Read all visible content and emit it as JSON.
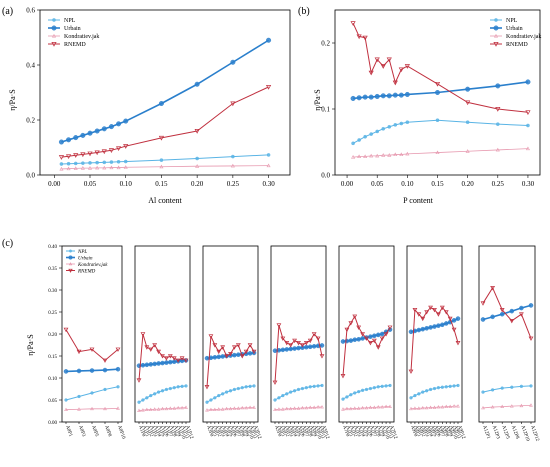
{
  "colors": {
    "NPL": "#5ab4e5",
    "Urbain": "#2a7fcc",
    "Kondratiev_jak": "#e79ab0",
    "RNEMD": "#c0303f"
  },
  "chart_data": [
    {
      "panel": "(a)",
      "type": "line",
      "xlabel": "Al content",
      "ylabel": "η/Pa·S",
      "xlim": [
        -0.02,
        0.33
      ],
      "ylim": [
        0.0,
        0.6
      ],
      "xticks": [
        "0.00",
        "0.05",
        "0.10",
        "0.15",
        "0.20",
        "0.25",
        "0.30"
      ],
      "xtick_values": [
        0,
        0.05,
        0.1,
        0.15,
        0.2,
        0.25,
        0.3
      ],
      "yticks": [
        "0.0",
        "0.2",
        "0.4",
        "0.6"
      ],
      "ytick_values": [
        0,
        0.2,
        0.4,
        0.6
      ],
      "legend_position": "top-left",
      "x": [
        0.01,
        0.02,
        0.03,
        0.04,
        0.05,
        0.06,
        0.07,
        0.08,
        0.09,
        0.1,
        0.15,
        0.2,
        0.25,
        0.3
      ],
      "series": [
        {
          "name": "NPL",
          "key": "NPL",
          "values": [
            0.04,
            0.041,
            0.042,
            0.043,
            0.044,
            0.045,
            0.046,
            0.047,
            0.048,
            0.049,
            0.054,
            0.06,
            0.067,
            0.073
          ]
        },
        {
          "name": "Urbain",
          "key": "Urbain",
          "values": [
            0.12,
            0.128,
            0.136,
            0.144,
            0.152,
            0.16,
            0.168,
            0.176,
            0.186,
            0.196,
            0.26,
            0.33,
            0.41,
            0.49
          ]
        },
        {
          "name": "Kondratiev.jak",
          "key": "Kondratiev_jak",
          "values": [
            0.022,
            0.023,
            0.024,
            0.025,
            0.025,
            0.026,
            0.026,
            0.027,
            0.027,
            0.028,
            0.03,
            0.032,
            0.033,
            0.034
          ]
        },
        {
          "name": "RNEMD",
          "key": "RNEMD",
          "values": [
            0.065,
            0.068,
            0.072,
            0.075,
            0.078,
            0.082,
            0.086,
            0.09,
            0.097,
            0.105,
            0.135,
            0.16,
            0.26,
            0.32
          ]
        }
      ]
    },
    {
      "panel": "(b)",
      "type": "line",
      "xlabel": "P content",
      "ylabel": "η/Pa·S",
      "xlim": [
        -0.02,
        0.32
      ],
      "ylim": [
        0.0,
        0.25
      ],
      "xticks": [
        "0.00",
        "0.05",
        "0.10",
        "0.15",
        "0.20",
        "0.25",
        "0.30"
      ],
      "xtick_values": [
        0,
        0.05,
        0.1,
        0.15,
        0.2,
        0.25,
        0.3
      ],
      "yticks": [
        "0.0",
        "0.1",
        "0.2"
      ],
      "ytick_values": [
        0,
        0.1,
        0.2
      ],
      "legend_position": "top-right",
      "x": [
        0.01,
        0.02,
        0.03,
        0.04,
        0.05,
        0.06,
        0.07,
        0.08,
        0.09,
        0.1,
        0.15,
        0.2,
        0.25,
        0.3
      ],
      "series": [
        {
          "name": "NPL",
          "key": "NPL",
          "values": [
            0.048,
            0.053,
            0.058,
            0.062,
            0.066,
            0.07,
            0.073,
            0.076,
            0.078,
            0.08,
            0.083,
            0.08,
            0.077,
            0.075
          ]
        },
        {
          "name": "Urbain",
          "key": "Urbain",
          "values": [
            0.116,
            0.117,
            0.118,
            0.118,
            0.119,
            0.12,
            0.12,
            0.121,
            0.121,
            0.122,
            0.125,
            0.13,
            0.135,
            0.141
          ]
        },
        {
          "name": "Kondratiev.jak",
          "key": "Kondratiev_jak",
          "values": [
            0.027,
            0.028,
            0.028,
            0.029,
            0.029,
            0.03,
            0.03,
            0.031,
            0.031,
            0.032,
            0.034,
            0.036,
            0.038,
            0.04
          ]
        },
        {
          "name": "RNEMD",
          "key": "RNEMD",
          "values": [
            0.23,
            0.21,
            0.208,
            0.155,
            0.175,
            0.165,
            0.175,
            0.14,
            0.16,
            0.165,
            0.138,
            0.11,
            0.1,
            0.095
          ]
        }
      ]
    },
    {
      "panel": "(c)",
      "type": "line",
      "ylabel": "η/Pa·S",
      "ylim": [
        0.0,
        0.4
      ],
      "yticks": [
        "0.00",
        "0.05",
        "0.10",
        "0.15",
        "0.20",
        "0.25",
        "0.30",
        "0.35",
        "0.40"
      ],
      "ytick_values": [
        0,
        0.05,
        0.1,
        0.15,
        0.2,
        0.25,
        0.3,
        0.35,
        0.4
      ],
      "legend_position": "top-left",
      "legend": [
        "NPL",
        "Urbain",
        "Kondratiev.jak",
        "RNEMD"
      ],
      "subplots": [
        {
          "x_labels": [
            "A0P1",
            "A0P3",
            "A0P5",
            "A0P8",
            "A0P10"
          ],
          "NPL": [
            0.05,
            0.058,
            0.066,
            0.074,
            0.08
          ],
          "Urbain": [
            0.115,
            0.116,
            0.117,
            0.118,
            0.12
          ],
          "Kondratiev_jak": [
            0.028,
            0.029,
            0.03,
            0.03,
            0.031
          ],
          "RNEMD": [
            0.21,
            0.16,
            0.165,
            0.14,
            0.165
          ]
        },
        {
          "x_labels": [
            "A1P0",
            "A1P1",
            "A1P2",
            "A1P3",
            "A1P4",
            "A1P5",
            "A1P6",
            "A1P7",
            "A1P8",
            "A1P9",
            "A1P10",
            "A1P11",
            "A1P12"
          ],
          "NPL": [
            0.045,
            0.05,
            0.055,
            0.06,
            0.064,
            0.068,
            0.071,
            0.074,
            0.076,
            0.078,
            0.08,
            0.081,
            0.082
          ],
          "Urbain": [
            0.128,
            0.129,
            0.13,
            0.131,
            0.132,
            0.133,
            0.134,
            0.135,
            0.136,
            0.137,
            0.138,
            0.139,
            0.14
          ],
          "Kondratiev_jak": [
            0.026,
            0.027,
            0.028,
            0.028,
            0.029,
            0.029,
            0.03,
            0.03,
            0.031,
            0.031,
            0.032,
            0.032,
            0.033
          ],
          "RNEMD": [
            0.095,
            0.2,
            0.17,
            0.165,
            0.175,
            0.16,
            0.15,
            0.145,
            0.15,
            0.145,
            0.14,
            0.145,
            0.14
          ]
        },
        {
          "x_labels": [
            "A3P0",
            "A3P1",
            "A3P2",
            "A3P3",
            "A3P4",
            "A3P5",
            "A3P6",
            "A3P7",
            "A3P8",
            "A3P9",
            "A3P10",
            "A3P11",
            "A3P12"
          ],
          "NPL": [
            0.045,
            0.05,
            0.055,
            0.06,
            0.064,
            0.068,
            0.071,
            0.074,
            0.076,
            0.078,
            0.08,
            0.081,
            0.082
          ],
          "Urbain": [
            0.145,
            0.146,
            0.147,
            0.148,
            0.149,
            0.15,
            0.151,
            0.152,
            0.153,
            0.154,
            0.155,
            0.156,
            0.157
          ],
          "Kondratiev_jak": [
            0.027,
            0.028,
            0.028,
            0.029,
            0.029,
            0.03,
            0.03,
            0.031,
            0.031,
            0.032,
            0.032,
            0.033,
            0.033
          ],
          "RNEMD": [
            0.08,
            0.195,
            0.175,
            0.16,
            0.17,
            0.15,
            0.155,
            0.17,
            0.175,
            0.15,
            0.16,
            0.175,
            0.16
          ]
        },
        {
          "x_labels": [
            "A5P0",
            "A5P1",
            "A5P2",
            "A5P3",
            "A5P4",
            "A5P5",
            "A5P6",
            "A5P7",
            "A5P8",
            "A5P9",
            "A5P10",
            "A5P11",
            "A5P12"
          ],
          "NPL": [
            0.05,
            0.055,
            0.06,
            0.064,
            0.068,
            0.071,
            0.074,
            0.076,
            0.078,
            0.08,
            0.081,
            0.082,
            0.083
          ],
          "Urbain": [
            0.162,
            0.163,
            0.164,
            0.165,
            0.166,
            0.167,
            0.168,
            0.169,
            0.17,
            0.171,
            0.172,
            0.173,
            0.174
          ],
          "Kondratiev_jak": [
            0.028,
            0.029,
            0.029,
            0.03,
            0.03,
            0.031,
            0.031,
            0.032,
            0.032,
            0.033,
            0.033,
            0.034,
            0.034
          ],
          "RNEMD": [
            0.09,
            0.22,
            0.19,
            0.18,
            0.175,
            0.185,
            0.18,
            0.175,
            0.18,
            0.185,
            0.2,
            0.19,
            0.15
          ]
        },
        {
          "x_labels": [
            "A7P0",
            "A7P1",
            "A7P2",
            "A7P3",
            "A7P4",
            "A7P5",
            "A7P6",
            "A7P7",
            "A7P8",
            "A7P9",
            "A7P10",
            "A7P11",
            "A7P12"
          ],
          "NPL": [
            0.052,
            0.057,
            0.062,
            0.066,
            0.069,
            0.072,
            0.074,
            0.076,
            0.078,
            0.08,
            0.081,
            0.082,
            0.083
          ],
          "Urbain": [
            0.183,
            0.184,
            0.185,
            0.187,
            0.188,
            0.19,
            0.192,
            0.194,
            0.196,
            0.198,
            0.2,
            0.205,
            0.21
          ],
          "Kondratiev_jak": [
            0.029,
            0.03,
            0.03,
            0.031,
            0.031,
            0.032,
            0.032,
            0.033,
            0.033,
            0.034,
            0.034,
            0.035,
            0.035
          ],
          "RNEMD": [
            0.105,
            0.21,
            0.225,
            0.24,
            0.215,
            0.2,
            0.19,
            0.18,
            0.185,
            0.17,
            0.19,
            0.2,
            0.215
          ]
        },
        {
          "x_labels": [
            "A9P0",
            "A9P1",
            "A9P2",
            "A9P3",
            "A9P4",
            "A9P5",
            "A9P6",
            "A9P7",
            "A9P8",
            "A9P9",
            "A9P10",
            "A9P11",
            "A9P12"
          ],
          "NPL": [
            0.055,
            0.06,
            0.064,
            0.068,
            0.071,
            0.074,
            0.076,
            0.078,
            0.079,
            0.08,
            0.081,
            0.082,
            0.083
          ],
          "Urbain": [
            0.205,
            0.207,
            0.209,
            0.211,
            0.213,
            0.215,
            0.217,
            0.219,
            0.221,
            0.224,
            0.227,
            0.231,
            0.235
          ],
          "Kondratiev_jak": [
            0.03,
            0.031,
            0.031,
            0.032,
            0.032,
            0.033,
            0.033,
            0.034,
            0.034,
            0.035,
            0.035,
            0.036,
            0.036
          ],
          "RNEMD": [
            0.115,
            0.255,
            0.245,
            0.235,
            0.25,
            0.26,
            0.255,
            0.245,
            0.26,
            0.25,
            0.235,
            0.21,
            0.18
          ]
        },
        {
          "x_labels": [
            "A12P1",
            "A12P3",
            "A12P5",
            "A12P8",
            "A12P10",
            "A12P12"
          ],
          "NPL": [
            0.068,
            0.073,
            0.077,
            0.079,
            0.081,
            0.082
          ],
          "Urbain": [
            0.233,
            0.239,
            0.245,
            0.252,
            0.259,
            0.265
          ],
          "Kondratiev_jak": [
            0.032,
            0.034,
            0.035,
            0.036,
            0.037,
            0.038
          ],
          "RNEMD": [
            0.27,
            0.305,
            0.255,
            0.23,
            0.245,
            0.19
          ]
        }
      ]
    }
  ]
}
